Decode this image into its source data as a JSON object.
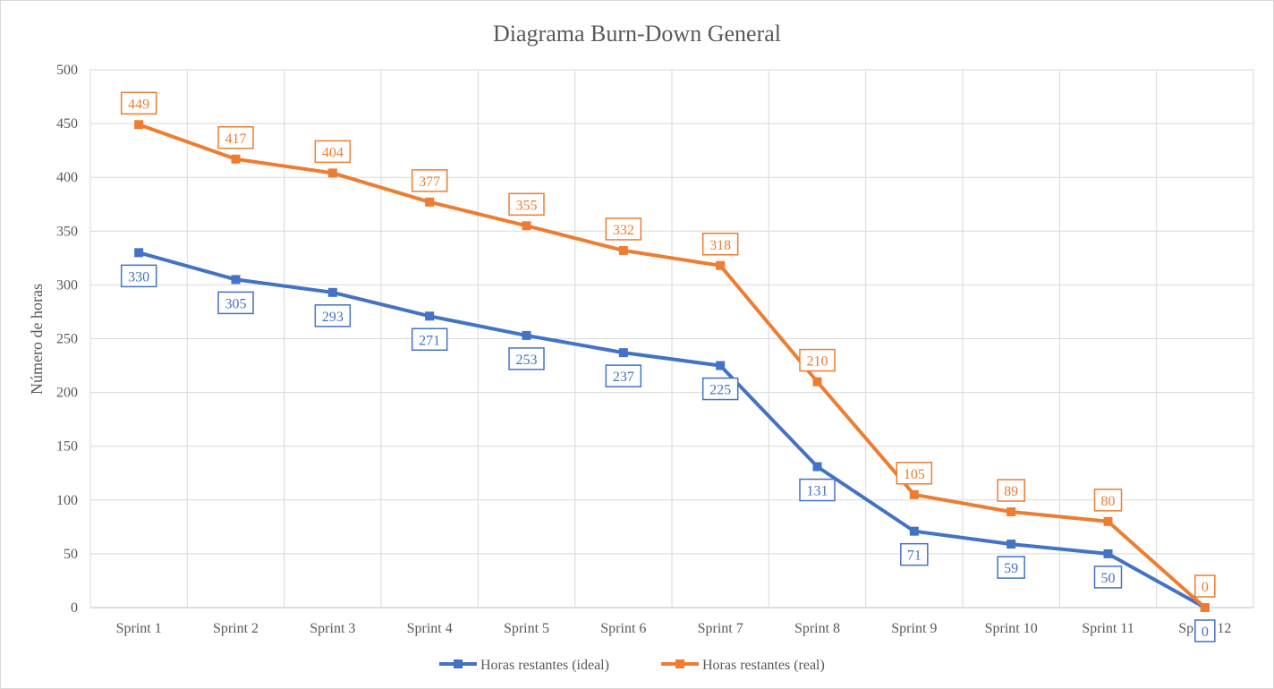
{
  "chart_data": {
    "type": "line",
    "title": "Diagrama  Burn-Down  General",
    "xlabel": "",
    "ylabel": "Número de horas",
    "categories": [
      "Sprint 1",
      "Sprint 2",
      "Sprint 3",
      "Sprint 4",
      "Sprint 5",
      "Sprint 6",
      "Sprint 7",
      "Sprint 8",
      "Sprint 9",
      "Sprint 10",
      "Sprint 11",
      "Sprint 12"
    ],
    "ylim": [
      0,
      500
    ],
    "yticks": [
      0,
      50,
      100,
      150,
      200,
      250,
      300,
      350,
      400,
      450,
      500
    ],
    "grid": true,
    "legend_position": "bottom",
    "series": [
      {
        "name": "Horas restantes (ideal)",
        "color": "#4472C4",
        "label_position": "below",
        "values": [
          330,
          305,
          293,
          271,
          253,
          237,
          225,
          131,
          71,
          59,
          50,
          0
        ]
      },
      {
        "name": "Horas restantes (real)",
        "color": "#ED7D31",
        "label_position": "above",
        "values": [
          449,
          417,
          404,
          377,
          355,
          332,
          318,
          210,
          105,
          89,
          80,
          0
        ]
      }
    ]
  }
}
